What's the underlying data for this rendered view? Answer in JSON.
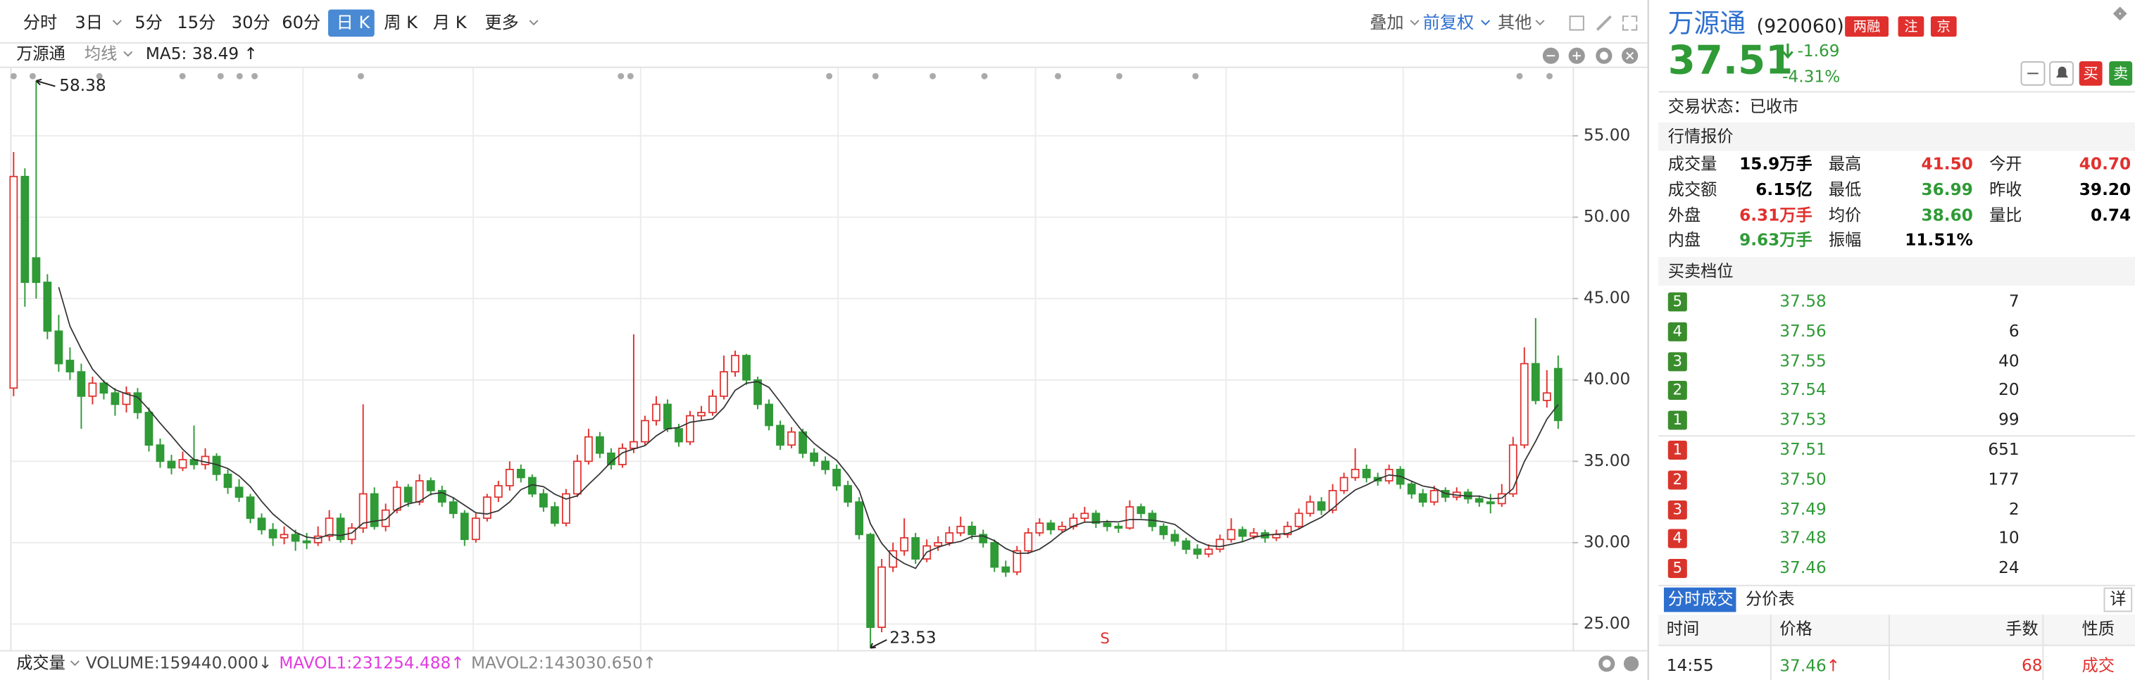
{
  "toolbar": {
    "periods": [
      "分时",
      "3日",
      "5分",
      "15分",
      "30分",
      "60分",
      "日 K",
      "周 K",
      "月 K",
      "更多"
    ],
    "right": [
      "叠加",
      "前复权",
      "其他"
    ]
  },
  "chart_header": {
    "name": "万源通",
    "ma_type": "均线",
    "ma5": "MA5: 38.49 ↑"
  },
  "chart_data": {
    "type": "candlestick",
    "signal": "S",
    "up_color": "#e0302d",
    "down_color": "#2f9a36",
    "ma_color": "#333333",
    "ylim": [
      23.4,
      59.0
    ],
    "yticks": [
      {
        "value": 25,
        "label": "25.00"
      },
      {
        "value": 30,
        "label": "30.00"
      },
      {
        "value": 35,
        "label": "35.00"
      },
      {
        "value": 40,
        "label": "40.00"
      },
      {
        "value": 45,
        "label": "45.00"
      },
      {
        "value": 50,
        "label": "50.00"
      },
      {
        "value": 55,
        "label": "55.00"
      }
    ],
    "candles": [
      [
        39.5,
        54.0,
        39.0,
        52.5
      ],
      [
        52.5,
        53.0,
        44.5,
        46.0
      ],
      [
        47.5,
        58.38,
        45.0,
        46.0
      ],
      [
        46.0,
        46.5,
        42.5,
        43.0
      ],
      [
        43.0,
        44.0,
        40.5,
        41.0
      ],
      [
        41.2,
        42.0,
        40.0,
        40.5
      ],
      [
        40.5,
        41.0,
        37.0,
        39.0
      ],
      [
        39.0,
        40.2,
        38.5,
        39.8
      ],
      [
        39.8,
        40.0,
        38.8,
        39.2
      ],
      [
        39.2,
        39.5,
        37.8,
        38.5
      ],
      [
        38.5,
        39.6,
        38.0,
        39.2
      ],
      [
        39.2,
        39.5,
        37.6,
        38.0
      ],
      [
        38.0,
        38.3,
        35.6,
        36.0
      ],
      [
        36.0,
        36.4,
        34.6,
        35.0
      ],
      [
        35.0,
        35.4,
        34.2,
        34.6
      ],
      [
        34.6,
        35.6,
        34.4,
        35.1
      ],
      [
        35.1,
        37.2,
        34.5,
        34.8
      ],
      [
        34.8,
        35.8,
        34.5,
        35.3
      ],
      [
        35.3,
        35.5,
        33.8,
        34.2
      ],
      [
        34.2,
        34.5,
        33.0,
        33.4
      ],
      [
        33.4,
        33.9,
        32.5,
        32.8
      ],
      [
        32.8,
        33.0,
        31.2,
        31.5
      ],
      [
        31.5,
        31.8,
        30.5,
        30.8
      ],
      [
        30.8,
        31.2,
        29.8,
        30.3
      ],
      [
        30.3,
        31.0,
        29.9,
        30.5
      ],
      [
        30.5,
        30.8,
        29.5,
        30.1
      ],
      [
        30.1,
        30.6,
        29.6,
        30.0
      ],
      [
        30.0,
        31.0,
        29.8,
        30.4
      ],
      [
        30.4,
        32.0,
        30.1,
        31.5
      ],
      [
        31.5,
        31.8,
        30.0,
        30.2
      ],
      [
        30.2,
        31.2,
        29.9,
        30.9
      ],
      [
        30.9,
        38.5,
        30.6,
        33.0
      ],
      [
        33.0,
        33.4,
        30.8,
        31.0
      ],
      [
        31.0,
        32.4,
        30.7,
        32.0
      ],
      [
        32.0,
        33.8,
        31.8,
        33.4
      ],
      [
        33.4,
        33.6,
        32.2,
        32.5
      ],
      [
        32.5,
        34.2,
        32.3,
        33.8
      ],
      [
        33.8,
        34.0,
        32.9,
        33.2
      ],
      [
        33.2,
        33.5,
        32.2,
        32.5
      ],
      [
        32.5,
        32.8,
        31.5,
        31.8
      ],
      [
        31.8,
        32.0,
        29.8,
        30.2
      ],
      [
        30.2,
        31.8,
        30.0,
        31.5
      ],
      [
        31.5,
        33.0,
        31.3,
        32.8
      ],
      [
        32.8,
        33.8,
        32.5,
        33.5
      ],
      [
        33.5,
        35.0,
        33.2,
        34.5
      ],
      [
        34.5,
        34.8,
        33.7,
        34.0
      ],
      [
        34.0,
        34.2,
        32.8,
        33.0
      ],
      [
        33.0,
        33.3,
        31.9,
        32.2
      ],
      [
        32.2,
        32.5,
        31.0,
        31.2
      ],
      [
        31.2,
        33.3,
        31.0,
        33.0
      ],
      [
        33.0,
        35.4,
        32.8,
        35.0
      ],
      [
        35.0,
        37.0,
        34.8,
        36.5
      ],
      [
        36.5,
        36.8,
        35.2,
        35.5
      ],
      [
        35.5,
        35.8,
        34.5,
        34.8
      ],
      [
        34.8,
        36.1,
        34.6,
        35.8
      ],
      [
        35.8,
        42.8,
        35.5,
        36.2
      ],
      [
        36.2,
        37.8,
        36.0,
        37.5
      ],
      [
        37.5,
        39.0,
        37.2,
        38.5
      ],
      [
        38.5,
        38.8,
        36.8,
        37.0
      ],
      [
        37.0,
        37.3,
        35.9,
        36.2
      ],
      [
        36.2,
        38.1,
        36.0,
        37.8
      ],
      [
        37.8,
        38.4,
        37.5,
        38.0
      ],
      [
        38.0,
        39.4,
        37.8,
        39.0
      ],
      [
        39.0,
        41.5,
        38.8,
        40.5
      ],
      [
        40.5,
        41.8,
        40.2,
        41.5
      ],
      [
        41.5,
        41.6,
        39.7,
        40.0
      ],
      [
        40.0,
        40.2,
        38.2,
        38.5
      ],
      [
        38.5,
        38.8,
        36.9,
        37.2
      ],
      [
        37.2,
        37.5,
        35.7,
        36.0
      ],
      [
        36.0,
        37.1,
        35.8,
        36.8
      ],
      [
        36.8,
        37.0,
        35.2,
        35.5
      ],
      [
        35.5,
        35.8,
        34.7,
        35.0
      ],
      [
        35.0,
        35.3,
        34.2,
        34.5
      ],
      [
        34.5,
        34.8,
        33.2,
        33.5
      ],
      [
        33.5,
        33.8,
        32.2,
        32.5
      ],
      [
        32.5,
        32.8,
        30.2,
        30.5
      ],
      [
        30.5,
        30.6,
        23.53,
        24.8
      ],
      [
        24.8,
        29.0,
        24.5,
        28.5
      ],
      [
        28.5,
        30.0,
        28.2,
        29.5
      ],
      [
        29.5,
        31.5,
        29.2,
        30.3
      ],
      [
        30.3,
        30.6,
        28.7,
        29.0
      ],
      [
        29.0,
        30.2,
        28.8,
        29.8
      ],
      [
        29.8,
        30.4,
        29.5,
        30.0
      ],
      [
        30.0,
        31.0,
        29.8,
        30.6
      ],
      [
        30.6,
        31.6,
        30.4,
        31.0
      ],
      [
        31.0,
        31.3,
        30.2,
        30.5
      ],
      [
        30.5,
        30.8,
        29.7,
        30.0
      ],
      [
        30.0,
        30.2,
        28.2,
        28.5
      ],
      [
        28.5,
        28.9,
        27.9,
        28.2
      ],
      [
        28.2,
        29.8,
        28.0,
        29.5
      ],
      [
        29.5,
        30.9,
        29.3,
        30.6
      ],
      [
        30.6,
        31.5,
        30.4,
        31.2
      ],
      [
        31.2,
        31.4,
        30.5,
        30.8
      ],
      [
        30.8,
        31.3,
        30.6,
        31.0
      ],
      [
        31.0,
        31.8,
        30.8,
        31.5
      ],
      [
        31.5,
        32.2,
        31.3,
        31.8
      ],
      [
        31.8,
        32.0,
        30.9,
        31.2
      ],
      [
        31.2,
        31.4,
        30.7,
        31.0
      ],
      [
        31.0,
        31.2,
        30.6,
        30.9
      ],
      [
        30.9,
        32.6,
        30.8,
        32.2
      ],
      [
        32.2,
        32.4,
        31.5,
        31.8
      ],
      [
        31.8,
        32.0,
        30.7,
        31.0
      ],
      [
        31.0,
        31.2,
        30.2,
        30.5
      ],
      [
        30.5,
        30.8,
        29.8,
        30.1
      ],
      [
        30.1,
        30.3,
        29.3,
        29.6
      ],
      [
        29.6,
        29.9,
        29.0,
        29.3
      ],
      [
        29.3,
        29.9,
        29.1,
        29.6
      ],
      [
        29.6,
        30.5,
        29.4,
        30.2
      ],
      [
        30.2,
        31.5,
        30.0,
        30.8
      ],
      [
        30.8,
        31.0,
        30.1,
        30.4
      ],
      [
        30.4,
        30.9,
        30.2,
        30.6
      ],
      [
        30.6,
        30.8,
        30.0,
        30.3
      ],
      [
        30.3,
        30.8,
        30.1,
        30.5
      ],
      [
        30.5,
        31.3,
        30.3,
        31.0
      ],
      [
        31.0,
        32.1,
        30.8,
        31.8
      ],
      [
        31.8,
        32.9,
        31.6,
        32.5
      ],
      [
        32.5,
        32.8,
        31.7,
        32.0
      ],
      [
        32.0,
        33.6,
        31.8,
        33.2
      ],
      [
        33.2,
        34.3,
        33.0,
        34.0
      ],
      [
        34.0,
        35.8,
        33.8,
        34.5
      ],
      [
        34.5,
        34.8,
        33.7,
        34.0
      ],
      [
        34.0,
        34.3,
        33.5,
        33.8
      ],
      [
        33.8,
        34.8,
        33.6,
        34.5
      ],
      [
        34.5,
        34.7,
        33.3,
        33.6
      ],
      [
        33.6,
        33.8,
        32.7,
        33.0
      ],
      [
        33.0,
        33.3,
        32.2,
        32.5
      ],
      [
        32.5,
        33.5,
        32.3,
        33.2
      ],
      [
        33.2,
        33.4,
        32.5,
        32.8
      ],
      [
        32.8,
        33.4,
        32.6,
        33.1
      ],
      [
        33.1,
        33.3,
        32.4,
        32.7
      ],
      [
        32.7,
        32.9,
        32.2,
        32.5
      ],
      [
        32.5,
        33.0,
        31.8,
        32.4
      ],
      [
        32.4,
        33.6,
        32.2,
        33.0
      ],
      [
        33.0,
        36.5,
        32.8,
        36.0
      ],
      [
        36.0,
        42.0,
        35.8,
        41.0
      ],
      [
        41.0,
        43.8,
        38.5,
        38.74
      ],
      [
        38.74,
        40.6,
        38.3,
        39.2
      ],
      [
        40.7,
        41.5,
        36.99,
        37.51
      ]
    ]
  },
  "volume_bar": {
    "label": "成交量",
    "volume": "VOLUME:159440.000↓",
    "mavol1": "MAVOL1:231254.488↑",
    "mavol2": "MAVOL2:143030.650↑"
  },
  "quote": {
    "name": "万源通",
    "code": "(920060)",
    "tags": [
      "两融",
      "注",
      "京"
    ],
    "price": "37.51",
    "change": "-1.69",
    "change_pct": "-4.31%",
    "buttons": [
      "买",
      "卖"
    ],
    "status": "交易状态：已收市",
    "section1": "行情报价",
    "stats": [
      [
        "成交量",
        "15.9万手",
        "最高",
        "41.50",
        "今开",
        "40.70"
      ],
      [
        "成交额",
        "6.15亿",
        "最低",
        "36.99",
        "昨收",
        "39.20"
      ],
      [
        "外盘",
        "6.31万手",
        "均价",
        "38.60",
        "量比",
        "0.74"
      ],
      [
        "内盘",
        "9.63万手",
        "振幅",
        "11.51%"
      ]
    ],
    "section2": "买卖档位",
    "asks": [
      [
        "5",
        "37.58",
        "7"
      ],
      [
        "4",
        "37.56",
        "6"
      ],
      [
        "3",
        "37.55",
        "40"
      ],
      [
        "2",
        "37.54",
        "20"
      ],
      [
        "1",
        "37.53",
        "99"
      ]
    ],
    "bids": [
      [
        "1",
        "37.51",
        "651"
      ],
      [
        "2",
        "37.50",
        "177"
      ],
      [
        "3",
        "37.49",
        "2"
      ],
      [
        "4",
        "37.48",
        "10"
      ],
      [
        "5",
        "37.46",
        "24"
      ]
    ],
    "tabs": [
      "分时成交",
      "分价表"
    ],
    "detail": "详",
    "trade_header": [
      "时间",
      "价格",
      "手数",
      "性质"
    ],
    "trades": [
      [
        "14:55",
        "37.46",
        "↑",
        "68",
        "成交"
      ]
    ]
  }
}
